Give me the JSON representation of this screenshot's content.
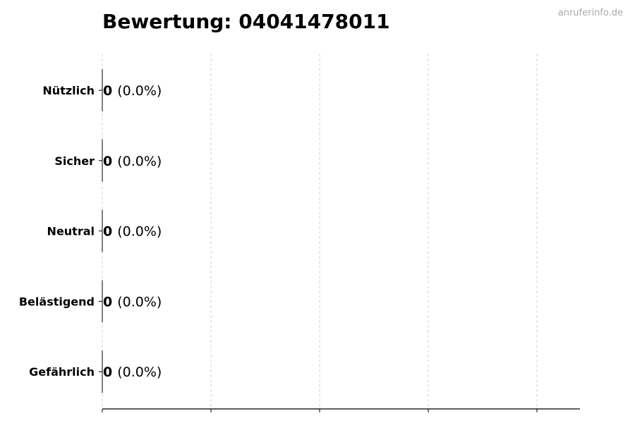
{
  "chart_data": {
    "type": "bar",
    "orientation": "horizontal",
    "title": "Bewertung: 04041478011",
    "watermark": "anruferinfo.de",
    "categories": [
      "Nützlich",
      "Sicher",
      "Neutral",
      "Belästigend",
      "Gefährlich"
    ],
    "values": [
      0,
      0,
      0,
      0,
      0
    ],
    "percent_labels": [
      "(0.0%)",
      "(0.0%)",
      "(0.0%)",
      "(0.0%)",
      "(0.0%)"
    ],
    "xlabel": "",
    "ylabel": "",
    "x_tick_count": 5,
    "x_tick_labels_shown": false,
    "grid": "vertical dashed",
    "legend": "none"
  }
}
